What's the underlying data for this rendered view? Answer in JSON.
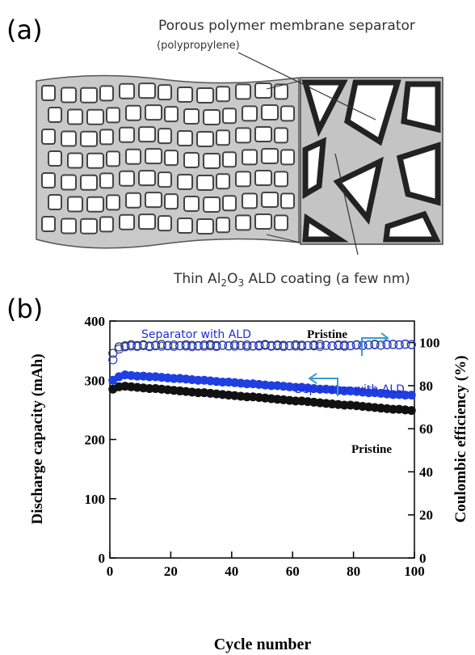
{
  "panel_a": {
    "label": "(a)",
    "annotation_top": "Porous polymer membrane separator",
    "annotation_sub": "(polypropylene)",
    "annotation_bottom": [
      "Thin Al",
      "2",
      "O",
      "3",
      " ALD coating (a few nm)"
    ]
  },
  "chart_data": {
    "type": "scatter",
    "panel_label": "(b)",
    "x_label": "Cycle number",
    "y_label": "Discharge capacity (mAh)",
    "y2_label": "Coulombic efficiency (%)",
    "x": [
      1,
      3,
      5,
      7,
      9,
      11,
      13,
      15,
      17,
      19,
      21,
      23,
      25,
      27,
      29,
      31,
      33,
      35,
      37,
      39,
      41,
      43,
      45,
      47,
      49,
      51,
      53,
      55,
      57,
      59,
      61,
      63,
      65,
      67,
      69,
      71,
      73,
      75,
      77,
      79,
      81,
      83,
      85,
      87,
      89,
      91,
      93,
      95,
      97,
      99
    ],
    "xlim": [
      0,
      100
    ],
    "xticks": [
      0,
      20,
      40,
      60,
      80,
      100
    ],
    "ylim": [
      0,
      400
    ],
    "yticks": [
      0,
      100,
      200,
      300,
      400
    ],
    "y2lim": [
      0,
      110
    ],
    "y2ticks": [
      0,
      20,
      40,
      60,
      80,
      100
    ],
    "series": [
      {
        "name": "Pristine",
        "color": "#111111",
        "style": "filled",
        "values": [
          285,
          289,
          290,
          289,
          288,
          287,
          286,
          286,
          285,
          284,
          283,
          282,
          281,
          280,
          279,
          279,
          278,
          277,
          276,
          275,
          274,
          273,
          272,
          272,
          271,
          270,
          269,
          268,
          267,
          266,
          265,
          265,
          264,
          263,
          262,
          261,
          260,
          259,
          258,
          258,
          257,
          256,
          255,
          254,
          253,
          252,
          251,
          251,
          250,
          249
        ]
      },
      {
        "name": "Separator with ALD",
        "color": "#1f3fe0",
        "style": "filled",
        "values": [
          300,
          306,
          309,
          308,
          307,
          307,
          306,
          306,
          305,
          304,
          303,
          303,
          302,
          301,
          300,
          300,
          299,
          298,
          297,
          297,
          296,
          295,
          294,
          294,
          293,
          292,
          291,
          291,
          290,
          289,
          288,
          288,
          287,
          286,
          285,
          285,
          284,
          283,
          282,
          282,
          281,
          280,
          279,
          279,
          278,
          277,
          276,
          276,
          275,
          275
        ]
      },
      {
        "name": "Pristine",
        "color": "#333333",
        "style": "open",
        "axis": "y2",
        "values": [
          95,
          98,
          98.5,
          99,
          98.6,
          99,
          98.4,
          98.8,
          99.1,
          98.5,
          98.9,
          98.6,
          99,
          98.7,
          98.4,
          98.9,
          99.1,
          98.6,
          98.8,
          98.5,
          99,
          98.7,
          98.9,
          98.4,
          98.8,
          99.1,
          98.6,
          98.9,
          98.7,
          98.5,
          99,
          98.8,
          98.6,
          98.9,
          99.1,
          98.7,
          98.5,
          98.9,
          98.8,
          98.6,
          99,
          98.7,
          98.9,
          99.2,
          98.8,
          99,
          99.1,
          98.9,
          99.2,
          99
        ]
      },
      {
        "name": "Separator with ALD",
        "color": "#2a3fd0",
        "style": "open",
        "axis": "y2",
        "values": [
          92,
          97,
          98,
          98.4,
          98.2,
          98.6,
          98.1,
          98.5,
          98.3,
          98.7,
          98.2,
          98.5,
          98.4,
          98.1,
          98.6,
          98.3,
          98.5,
          98.2,
          98.7,
          98.4,
          98.3,
          98.6,
          98.2,
          98.5,
          98.4,
          98.7,
          98.3,
          98.5,
          98.2,
          98.6,
          98.4,
          98.3,
          98.6,
          98.5,
          98.2,
          98.7,
          98.4,
          98.6,
          98.3,
          98.5,
          98.8,
          98.6,
          98.9,
          99,
          98.8,
          99.1,
          99.2,
          99,
          99.3,
          99.1
        ]
      }
    ]
  }
}
